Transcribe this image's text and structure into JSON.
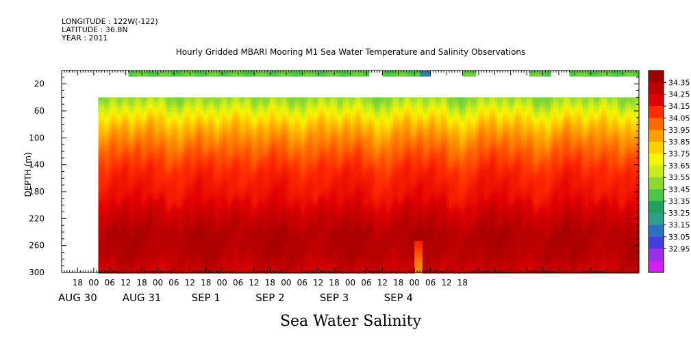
{
  "header": {
    "longitude": "LONGITUDE : 122W(-122)",
    "latitude": "LATITUDE : 36.8N",
    "year": "YEAR : 2011"
  },
  "chart_data": {
    "type": "heatmap",
    "title": "Hourly Gridded MBARI Mooring M1 Sea Water Temperature and Salinity Observations",
    "bottom_label": "Sea Water Salinity",
    "ylabel": "DEPTH (m)",
    "y_reversed": true,
    "ylim": [
      0,
      300
    ],
    "y_ticks": [
      20,
      60,
      100,
      140,
      180,
      220,
      260,
      300
    ],
    "x_start_hour": "AUG 30 12:00",
    "x_end_hour": "SEP 4 24:00",
    "x_hour_labels": [
      "18",
      "00",
      "06",
      "12",
      "18",
      "00",
      "06",
      "12",
      "18",
      "00",
      "06",
      "12",
      "18",
      "00",
      "06",
      "12",
      "18",
      "00",
      "06",
      "12",
      "18",
      "00",
      "06",
      "12",
      "18"
    ],
    "x_day_labels": [
      "AUG 30",
      "AUG 31",
      "SEP  1",
      "SEP  2",
      "SEP  3",
      "SEP  4"
    ],
    "colorbar_levels": [
      "34.35",
      "34.25",
      "34.15",
      "34.05",
      "33.95",
      "33.85",
      "33.75",
      "33.65",
      "33.55",
      "33.45",
      "33.35",
      "33.25",
      "33.15",
      "33.05",
      "32.95"
    ],
    "colorbar_colors": [
      "#9e0000",
      "#c00000",
      "#e00000",
      "#ff2a00",
      "#ff6a00",
      "#ffa000",
      "#ffd000",
      "#f5f500",
      "#c8ec1e",
      "#8ed832",
      "#4cc646",
      "#25a15e",
      "#2ea08c",
      "#2e6fc0",
      "#4040e0",
      "#9b30e6",
      "#d020f0"
    ],
    "surface_segments_hours": [
      [
        25,
        115
      ],
      [
        120,
        138
      ],
      [
        150,
        155
      ],
      [
        175,
        183
      ],
      [
        190,
        216
      ]
    ],
    "deep_profile": [
      {
        "depth": 10,
        "value": 33.5
      },
      {
        "depth": 40,
        "value": 33.57
      },
      {
        "depth": 60,
        "value": 33.72
      },
      {
        "depth": 80,
        "value": 33.86
      },
      {
        "depth": 100,
        "value": 33.95
      },
      {
        "depth": 120,
        "value": 34.02
      },
      {
        "depth": 150,
        "value": 34.1
      },
      {
        "depth": 190,
        "value": 34.15
      },
      {
        "depth": 210,
        "value": 34.22
      },
      {
        "depth": 240,
        "value": 34.3
      },
      {
        "depth": 270,
        "value": 34.29
      },
      {
        "depth": 300,
        "value": 34.22
      }
    ]
  }
}
